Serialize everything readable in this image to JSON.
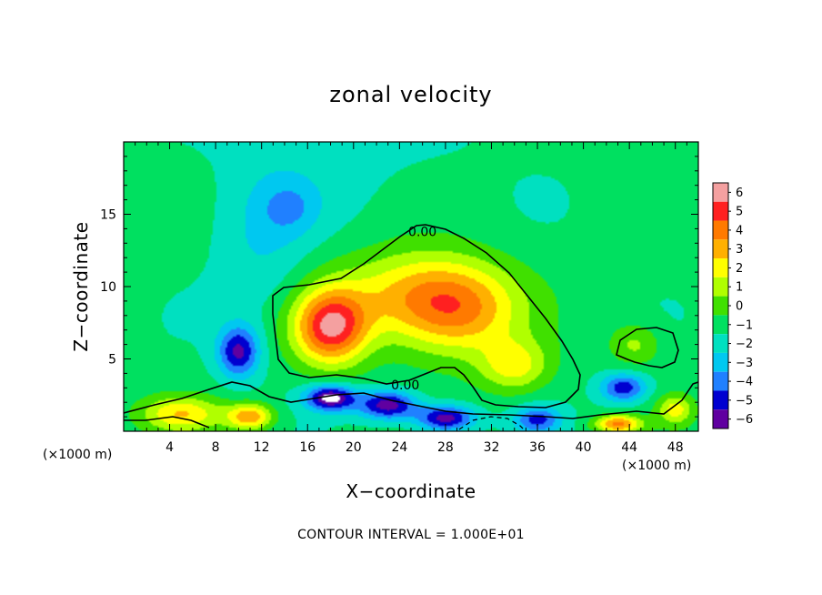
{
  "chart_data": {
    "type": "heatmap",
    "title": "zonal velocity",
    "xlabel": "X−coordinate",
    "ylabel": "Z−coordinate",
    "x_unit_left": "(×1000 m)",
    "x_unit_right": "(×1000 m)",
    "xlim": [
      0,
      50
    ],
    "ylim": [
      0,
      20
    ],
    "x_ticks": [
      4,
      8,
      12,
      16,
      20,
      24,
      28,
      32,
      36,
      40,
      44,
      48
    ],
    "y_ticks": [
      5,
      10,
      15
    ],
    "colorbar": {
      "levels": [
        6,
        5,
        4,
        3,
        2,
        1,
        0,
        -1,
        -2,
        -3,
        -4,
        -5,
        -6
      ],
      "labels": [
        "6",
        "5",
        "4",
        "3",
        "2",
        "1",
        "0",
        "−1",
        "−2",
        "−3",
        "−4",
        "−5",
        "−6"
      ],
      "colors": [
        "#f4a0a0",
        "#ff2020",
        "#ff7a00",
        "#ffb000",
        "#ffff00",
        "#b0ff00",
        "#40e000",
        "#00e060",
        "#00e0c0",
        "#00c8f0",
        "#2080ff",
        "#0000d0",
        "#6000a0"
      ]
    },
    "background_value": -1.2,
    "features": [
      {
        "x": 18,
        "z": 7.2,
        "sx": 3.2,
        "sz": 2.6,
        "amp": 6.5
      },
      {
        "x": 29,
        "z": 8.5,
        "sx": 5.5,
        "sz": 3.2,
        "amp": 4.8
      },
      {
        "x": 24,
        "z": 9.5,
        "sx": 6.0,
        "sz": 3.0,
        "amp": 2.6
      },
      {
        "x": 34,
        "z": 4.5,
        "sx": 3.0,
        "sz": 1.8,
        "amp": 3.0
      },
      {
        "x": 10,
        "z": 5.5,
        "sx": 1.8,
        "sz": 1.8,
        "amp": -4.5
      },
      {
        "x": 12,
        "z": 13.0,
        "sx": 4.0,
        "sz": 5.0,
        "amp": -1.3
      },
      {
        "x": 14.5,
        "z": 15.5,
        "sx": 2.5,
        "sz": 1.8,
        "amp": -1.5
      },
      {
        "x": 18,
        "z": 2.3,
        "sx": 2.2,
        "sz": 0.9,
        "amp": -5.5
      },
      {
        "x": 23,
        "z": 1.8,
        "sx": 2.5,
        "sz": 1.0,
        "amp": -5.0
      },
      {
        "x": 28,
        "z": 0.9,
        "sx": 2.5,
        "sz": 0.9,
        "amp": -5.0
      },
      {
        "x": 36,
        "z": 0.8,
        "sx": 2.0,
        "sz": 0.9,
        "amp": -3.5
      },
      {
        "x": 43.5,
        "z": 3.0,
        "sx": 2.0,
        "sz": 1.0,
        "amp": -4.0
      },
      {
        "x": 44.5,
        "z": 6.0,
        "sx": 2.2,
        "sz": 1.5,
        "amp": 2.0
      },
      {
        "x": 5,
        "z": 1.2,
        "sx": 3.5,
        "sz": 1.2,
        "amp": 3.5
      },
      {
        "x": 11,
        "z": 1.0,
        "sx": 2.0,
        "sz": 0.9,
        "amp": 4.5
      },
      {
        "x": 43,
        "z": 0.5,
        "sx": 2.0,
        "sz": 0.6,
        "amp": 5.0
      },
      {
        "x": 48,
        "z": 1.5,
        "sx": 1.5,
        "sz": 1.0,
        "amp": 3.0
      }
    ],
    "contour_labels": [
      {
        "text": "0.00",
        "x": 26,
        "z": 13.8
      },
      {
        "text": "0.00",
        "x": 24.5,
        "z": 3.2
      }
    ],
    "footnote": "CONTOUR INTERVAL = 1.000E+01"
  }
}
